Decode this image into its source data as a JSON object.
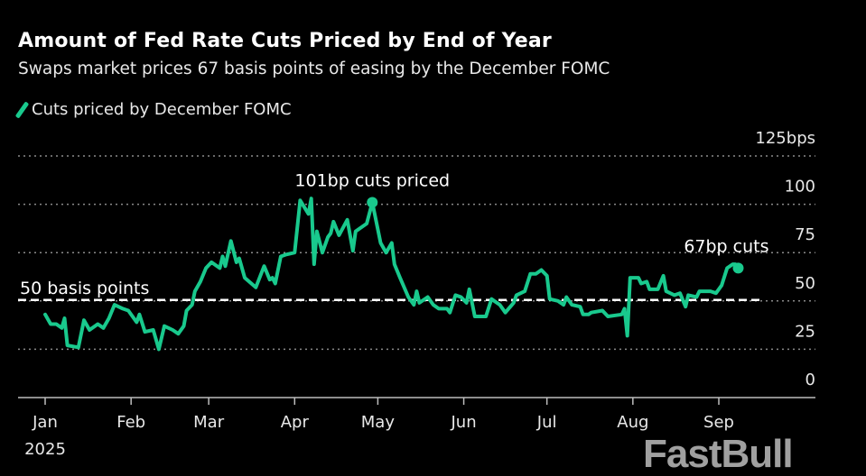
{
  "chart_data": {
    "type": "line",
    "title": "Amount of Fed Rate Cuts Priced by End of Year",
    "subtitle": "Swaps market prices 67 basis points of easing by the December FOMC",
    "legend": "top-left",
    "ylim": [
      0,
      125
    ],
    "y_ticks": [
      "125bps",
      "100",
      "75",
      "50",
      "25",
      "0"
    ],
    "y_tick_values": [
      125,
      100,
      75,
      50,
      25,
      0
    ],
    "x_ticks": [
      "Jan",
      "Feb",
      "Mar",
      "Apr",
      "May",
      "Jun",
      "Jul",
      "Aug",
      "Sep"
    ],
    "x_tick_dates": [
      "2025-01-01",
      "2025-02-01",
      "2025-03-01",
      "2025-04-01",
      "2025-05-01",
      "2025-06-01",
      "2025-07-01",
      "2025-08-01",
      "2025-09-01"
    ],
    "x_year_label": "2025",
    "grid": true,
    "colors": {
      "series": "#19c98d",
      "text": "#e8e8e8",
      "grid": "#8a8a8a"
    },
    "reference_line": {
      "value": 50,
      "label": "50 basis points"
    },
    "annotations": [
      {
        "text": "101bp cuts priced",
        "date": "2025-04-29",
        "value": 101
      },
      {
        "text": "67bp cuts",
        "date": "2025-09-08",
        "value": 67
      }
    ],
    "series": [
      {
        "name": "Cuts priced by December FOMC",
        "x": [
          "2025-01-01",
          "2025-01-03",
          "2025-01-05",
          "2025-01-07",
          "2025-01-08",
          "2025-01-09",
          "2025-01-13",
          "2025-01-15",
          "2025-01-17",
          "2025-01-20",
          "2025-01-22",
          "2025-01-24",
          "2025-01-26",
          "2025-01-29",
          "2025-01-31",
          "2025-02-03",
          "2025-02-04",
          "2025-02-06",
          "2025-02-09",
          "2025-02-11",
          "2025-02-13",
          "2025-02-16",
          "2025-02-18",
          "2025-02-20",
          "2025-02-21",
          "2025-02-23",
          "2025-02-24",
          "2025-02-26",
          "2025-02-28",
          "2025-03-02",
          "2025-03-05",
          "2025-03-06",
          "2025-03-07",
          "2025-03-09",
          "2025-03-11",
          "2025-03-12",
          "2025-03-14",
          "2025-03-18",
          "2025-03-21",
          "2025-03-23",
          "2025-03-24",
          "2025-03-25",
          "2025-03-27",
          "2025-03-29",
          "2025-04-01",
          "2025-04-03",
          "2025-04-06",
          "2025-04-07",
          "2025-04-08",
          "2025-04-09",
          "2025-04-11",
          "2025-04-13",
          "2025-04-14",
          "2025-04-15",
          "2025-04-17",
          "2025-04-20",
          "2025-04-22",
          "2025-04-23",
          "2025-04-27",
          "2025-04-29",
          "2025-05-02",
          "2025-05-04",
          "2025-05-06",
          "2025-05-07",
          "2025-05-09",
          "2025-05-12",
          "2025-05-14",
          "2025-05-15",
          "2025-05-16",
          "2025-05-19",
          "2025-05-21",
          "2025-05-23",
          "2025-05-26",
          "2025-05-27",
          "2025-05-29",
          "2025-05-31",
          "2025-06-02",
          "2025-06-03",
          "2025-06-05",
          "2025-06-09",
          "2025-06-11",
          "2025-06-14",
          "2025-06-16",
          "2025-06-19",
          "2025-06-20",
          "2025-06-23",
          "2025-06-25",
          "2025-06-27",
          "2025-06-29",
          "2025-07-01",
          "2025-07-02",
          "2025-07-05",
          "2025-07-07",
          "2025-07-08",
          "2025-07-10",
          "2025-07-13",
          "2025-07-14",
          "2025-07-16",
          "2025-07-17",
          "2025-07-21",
          "2025-07-23",
          "2025-07-28",
          "2025-07-29",
          "2025-07-30",
          "2025-07-31",
          "2025-08-03",
          "2025-08-04",
          "2025-08-06",
          "2025-08-07",
          "2025-08-10",
          "2025-08-12",
          "2025-08-13",
          "2025-08-16",
          "2025-08-18",
          "2025-08-20",
          "2025-08-21",
          "2025-08-24",
          "2025-08-25",
          "2025-08-29",
          "2025-08-31",
          "2025-09-02",
          "2025-09-04",
          "2025-09-06",
          "2025-09-07",
          "2025-09-08"
        ],
        "values": [
          43,
          38,
          38,
          36,
          41,
          27,
          26,
          40,
          35,
          38,
          36,
          41,
          48,
          46,
          45,
          39,
          43,
          34,
          35,
          25,
          37,
          35,
          33,
          37,
          45,
          48,
          55,
          60,
          67,
          70,
          67,
          73,
          68,
          81,
          70,
          72,
          62,
          57,
          68,
          61,
          62,
          59,
          73,
          74,
          75,
          102,
          95,
          103,
          69,
          86,
          75,
          83,
          85,
          91,
          84,
          92,
          76,
          86,
          90,
          101,
          80,
          75,
          80,
          69,
          62,
          52,
          48,
          55,
          49,
          52,
          48,
          46,
          46,
          44,
          53,
          52,
          49,
          56,
          42,
          42,
          51,
          48,
          44,
          49,
          53,
          55,
          64,
          64,
          66,
          63,
          51,
          50,
          48,
          52,
          48,
          47,
          43,
          43,
          44,
          45,
          42,
          43,
          46,
          32,
          62,
          62,
          59,
          60,
          56,
          56,
          63,
          55,
          53,
          54,
          47,
          53,
          52,
          55,
          55,
          54,
          58,
          67,
          69,
          69,
          67
        ]
      }
    ]
  },
  "watermark": "FastBull"
}
